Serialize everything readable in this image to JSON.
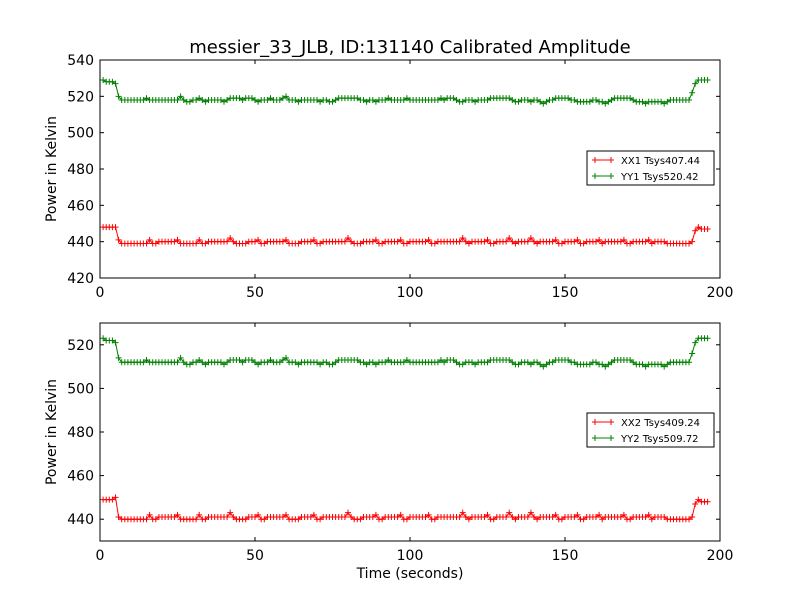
{
  "chart_data": {
    "title": "messier_33_JLB, ID:131140 Calibrated Amplitude",
    "xlabel": "Time (seconds)",
    "xlim": [
      0,
      200
    ],
    "xticks": [
      "0",
      "50",
      "100",
      "150",
      "200"
    ],
    "grid": false,
    "colors": {
      "xx": "#ff0000",
      "yy": "#008000"
    },
    "panels": [
      {
        "type": "line",
        "ylabel": "Power in Kelvin",
        "ylim": [
          420,
          540
        ],
        "yticks": [
          "420",
          "440",
          "460",
          "480",
          "500",
          "520",
          "540"
        ],
        "legend_position": "right",
        "series": [
          {
            "name": "XX1 Tsys407.44",
            "color": "#ff0000",
            "x_range": [
              1,
              196
            ],
            "values": [
              448,
              448,
              448,
              448,
              448,
              441,
              439,
              439,
              439,
              439,
              439,
              439,
              439,
              439,
              439,
              441,
              439,
              439,
              440,
              440,
              440,
              440,
              440,
              440,
              441,
              439,
              439,
              439,
              439,
              439,
              439,
              441,
              439,
              439,
              440,
              440,
              440,
              440,
              440,
              440,
              440,
              442,
              440,
              439,
              439,
              439,
              439,
              440,
              440,
              440,
              441,
              439,
              439,
              440,
              440,
              440,
              440,
              440,
              440,
              441,
              439,
              439,
              439,
              439,
              440,
              440,
              440,
              440,
              441,
              439,
              439,
              440,
              440,
              440,
              440,
              440,
              440,
              440,
              440,
              442,
              440,
              439,
              439,
              439,
              440,
              440,
              440,
              440,
              441,
              439,
              439,
              440,
              440,
              440,
              440,
              440,
              441,
              439,
              439,
              440,
              440,
              440,
              440,
              440,
              440,
              441,
              439,
              439,
              440,
              440,
              440,
              440,
              440,
              440,
              440,
              440,
              442,
              440,
              439,
              440,
              440,
              440,
              440,
              440,
              441,
              439,
              439,
              440,
              440,
              440,
              440,
              442,
              440,
              439,
              440,
              440,
              440,
              440,
              442,
              440,
              439,
              440,
              440,
              440,
              440,
              440,
              441,
              439,
              439,
              440,
              440,
              440,
              440,
              441,
              439,
              439,
              440,
              440,
              440,
              440,
              441,
              439,
              440,
              440,
              440,
              440,
              440,
              440,
              441,
              439,
              439,
              440,
              440,
              440,
              440,
              440,
              441,
              439,
              440,
              440,
              440,
              440,
              439,
              439,
              439,
              439,
              439,
              439,
              439,
              439,
              440,
              446,
              448,
              447,
              447,
              447
            ]
          },
          {
            "name": "YY1 Tsys520.42",
            "color": "#008000",
            "x_range": [
              1,
              196
            ],
            "values": [
              529,
              528,
              528,
              528,
              527,
              520,
              518,
              518,
              518,
              518,
              518,
              518,
              518,
              518,
              519,
              518,
              518,
              518,
              518,
              518,
              518,
              518,
              518,
              518,
              518,
              520,
              518,
              517,
              517,
              518,
              518,
              519,
              518,
              517,
              518,
              518,
              518,
              518,
              518,
              517,
              518,
              519,
              519,
              519,
              519,
              518,
              519,
              519,
              519,
              518,
              517,
              518,
              518,
              518,
              519,
              518,
              518,
              518,
              519,
              520,
              518,
              518,
              518,
              517,
              518,
              518,
              518,
              518,
              518,
              518,
              517,
              518,
              518,
              517,
              517,
              518,
              519,
              519,
              519,
              519,
              519,
              519,
              519,
              518,
              518,
              517,
              518,
              518,
              517,
              518,
              518,
              518,
              519,
              518,
              518,
              518,
              518,
              518,
              519,
              518,
              518,
              518,
              518,
              518,
              518,
              518,
              518,
              518,
              518,
              519,
              518,
              519,
              519,
              519,
              518,
              517,
              517,
              518,
              518,
              518,
              517,
              518,
              518,
              518,
              518,
              519,
              519,
              519,
              519,
              519,
              519,
              519,
              518,
              517,
              517,
              518,
              518,
              518,
              517,
              518,
              518,
              517,
              516,
              517,
              518,
              518,
              519,
              519,
              519,
              519,
              519,
              518,
              518,
              517,
              517,
              517,
              517,
              517,
              518,
              518,
              517,
              517,
              516,
              517,
              518,
              519,
              519,
              519,
              519,
              519,
              519,
              518,
              517,
              517,
              517,
              516,
              517,
              517,
              517,
              517,
              517,
              516,
              517,
              518,
              518,
              518,
              518,
              518,
              518,
              518,
              522,
              527,
              529,
              529,
              529,
              529
            ]
          }
        ]
      },
      {
        "type": "line",
        "ylabel": "Power in Kelvin",
        "ylim": [
          430,
          530
        ],
        "yticks": [
          "440",
          "460",
          "480",
          "500",
          "520"
        ],
        "legend_position": "right",
        "series": [
          {
            "name": "XX2 Tsys409.24",
            "color": "#ff0000",
            "x_range": [
              1,
              196
            ],
            "values": [
              449,
              449,
              449,
              449,
              450,
              441,
              440,
              440,
              440,
              440,
              440,
              440,
              440,
              440,
              440,
              442,
              440,
              440,
              441,
              441,
              441,
              441,
              441,
              441,
              442,
              440,
              440,
              440,
              440,
              440,
              440,
              442,
              440,
              440,
              441,
              441,
              441,
              441,
              441,
              441,
              441,
              443,
              441,
              440,
              440,
              440,
              440,
              441,
              441,
              441,
              442,
              440,
              440,
              441,
              441,
              441,
              441,
              441,
              441,
              442,
              440,
              440,
              440,
              440,
              441,
              441,
              441,
              441,
              442,
              440,
              440,
              441,
              441,
              441,
              441,
              441,
              441,
              441,
              441,
              443,
              441,
              440,
              440,
              440,
              441,
              441,
              441,
              441,
              442,
              440,
              440,
              441,
              441,
              441,
              441,
              441,
              442,
              440,
              440,
              441,
              441,
              441,
              441,
              441,
              441,
              442,
              440,
              440,
              441,
              441,
              441,
              441,
              441,
              441,
              441,
              441,
              443,
              441,
              440,
              441,
              441,
              441,
              441,
              441,
              442,
              440,
              440,
              441,
              441,
              441,
              441,
              443,
              441,
              440,
              441,
              441,
              441,
              441,
              443,
              441,
              440,
              441,
              441,
              441,
              441,
              441,
              442,
              440,
              440,
              441,
              441,
              441,
              441,
              442,
              440,
              440,
              441,
              441,
              441,
              441,
              442,
              440,
              441,
              441,
              441,
              441,
              441,
              441,
              442,
              440,
              440,
              441,
              441,
              441,
              441,
              441,
              442,
              440,
              441,
              441,
              441,
              441,
              440,
              440,
              440,
              440,
              440,
              440,
              440,
              440,
              441,
              447,
              449,
              448,
              448,
              448
            ]
          },
          {
            "name": "YY2 Tsys509.72",
            "color": "#008000",
            "x_range": [
              1,
              196
            ],
            "values": [
              523,
              522,
              522,
              522,
              521,
              514,
              512,
              512,
              512,
              512,
              512,
              512,
              512,
              512,
              513,
              512,
              512,
              512,
              512,
              512,
              512,
              512,
              512,
              512,
              512,
              514,
              512,
              511,
              511,
              512,
              512,
              513,
              512,
              511,
              512,
              512,
              512,
              512,
              512,
              511,
              512,
              513,
              513,
              513,
              513,
              512,
              513,
              513,
              513,
              512,
              511,
              512,
              512,
              512,
              513,
              512,
              512,
              512,
              513,
              514,
              512,
              512,
              512,
              511,
              512,
              512,
              512,
              512,
              512,
              512,
              511,
              512,
              512,
              511,
              511,
              512,
              513,
              513,
              513,
              513,
              513,
              513,
              513,
              512,
              512,
              511,
              512,
              512,
              511,
              512,
              512,
              512,
              513,
              512,
              512,
              512,
              512,
              512,
              513,
              512,
              512,
              512,
              512,
              512,
              512,
              512,
              512,
              512,
              512,
              513,
              512,
              513,
              513,
              513,
              512,
              511,
              511,
              512,
              512,
              512,
              511,
              512,
              512,
              512,
              512,
              513,
              513,
              513,
              513,
              513,
              513,
              513,
              512,
              511,
              511,
              512,
              512,
              512,
              511,
              512,
              512,
              511,
              510,
              511,
              512,
              512,
              513,
              513,
              513,
              513,
              513,
              512,
              512,
              511,
              511,
              511,
              511,
              511,
              512,
              512,
              511,
              511,
              510,
              511,
              512,
              513,
              513,
              513,
              513,
              513,
              513,
              512,
              511,
              511,
              511,
              510,
              511,
              511,
              511,
              511,
              511,
              510,
              511,
              512,
              512,
              512,
              512,
              512,
              512,
              512,
              516,
              521,
              523,
              523,
              523,
              523
            ]
          }
        ]
      }
    ]
  }
}
